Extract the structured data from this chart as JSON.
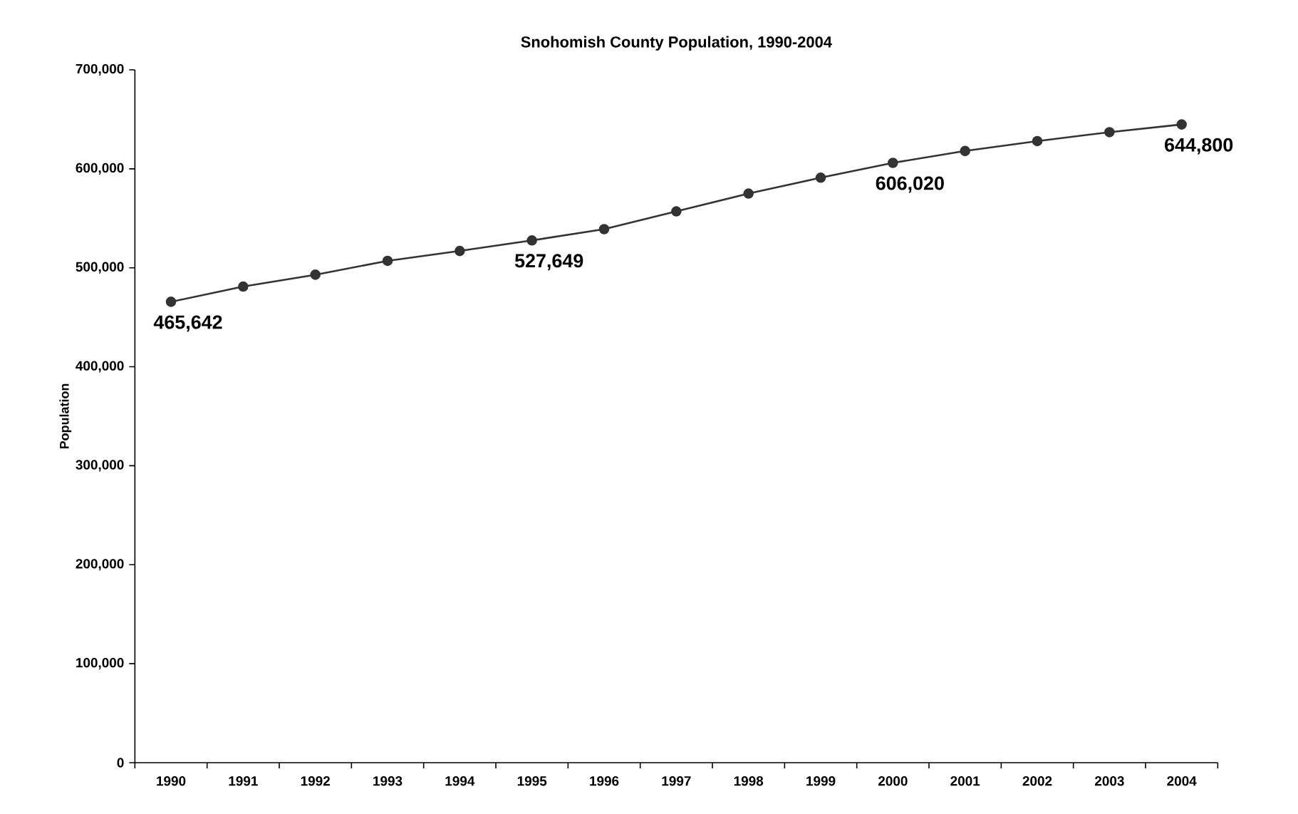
{
  "chart_data": {
    "type": "line",
    "title": "Snohomish County Population, 1990-2004",
    "ylabel": "Population",
    "categories": [
      "1990",
      "1991",
      "1992",
      "1993",
      "1994",
      "1995",
      "1996",
      "1997",
      "1998",
      "1999",
      "2000",
      "2001",
      "2002",
      "2003",
      "2004"
    ],
    "values": [
      465642,
      481000,
      493000,
      507000,
      517000,
      527649,
      539000,
      557000,
      575000,
      591000,
      606020,
      618000,
      628000,
      637000,
      644800
    ],
    "value_labels": [
      "465,642",
      null,
      null,
      null,
      null,
      "527,649",
      null,
      null,
      null,
      null,
      "606,020",
      null,
      null,
      null,
      "644,800"
    ],
    "color": "#333333",
    "marker": "circle",
    "line_style": "solid",
    "ylim": [
      0,
      700000
    ],
    "yticks": [
      {
        "value": 0,
        "label": "0"
      },
      {
        "value": 100000,
        "label": "100,000"
      },
      {
        "value": 200000,
        "label": "200,000"
      },
      {
        "value": 300000,
        "label": "300,000"
      },
      {
        "value": 400000,
        "label": "400,000"
      },
      {
        "value": 500000,
        "label": "500,000"
      },
      {
        "value": 600000,
        "label": "600,000"
      },
      {
        "value": 700000,
        "label": "700,000"
      }
    ]
  }
}
